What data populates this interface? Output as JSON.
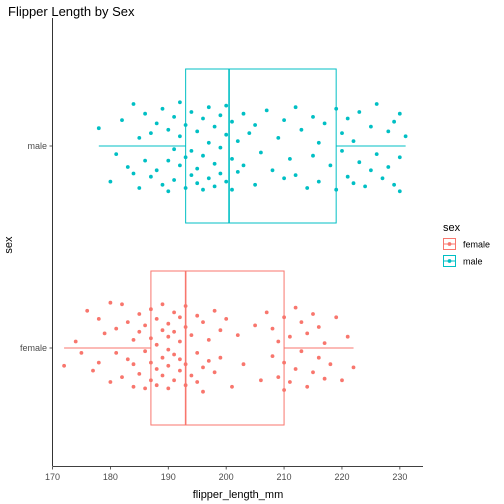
{
  "chart_data": {
    "type": "box+jitter",
    "title": "Flipper Length by Sex",
    "xlabel": "flipper_length_mm",
    "ylabel": "sex",
    "xlim": [
      170,
      234
    ],
    "x_ticks": [
      170,
      180,
      190,
      200,
      210,
      220,
      230
    ],
    "categories": [
      "female",
      "male"
    ],
    "legend": {
      "title": "sex",
      "position": "right",
      "entries": [
        "female",
        "male"
      ]
    },
    "grid": false,
    "series": [
      {
        "name": "female",
        "color": "#F8766D",
        "box": {
          "lower_whisker": 172,
          "q1": 187,
          "median": 193,
          "q3": 210,
          "upper_whisker": 222
        },
        "points": [
          [
            172,
            0.11
          ],
          [
            174,
            -0.04
          ],
          [
            175,
            0.03
          ],
          [
            176,
            -0.23
          ],
          [
            177,
            0.14
          ],
          [
            178,
            -0.18
          ],
          [
            178,
            0.09
          ],
          [
            179,
            -0.09
          ],
          [
            180,
            0.21
          ],
          [
            180,
            -0.28
          ],
          [
            181,
            0.03
          ],
          [
            181,
            -0.12
          ],
          [
            182,
            0.18
          ],
          [
            182,
            -0.27
          ],
          [
            183,
            0.07
          ],
          [
            183,
            -0.16
          ],
          [
            184,
            0.24
          ],
          [
            184,
            -0.05
          ],
          [
            184,
            0.1
          ],
          [
            185,
            -0.21
          ],
          [
            185,
            0.16
          ],
          [
            185,
            -0.1
          ],
          [
            186,
            0.25
          ],
          [
            186,
            0.02
          ],
          [
            186,
            -0.14
          ],
          [
            187,
            0.2
          ],
          [
            187,
            -0.06
          ],
          [
            187,
            0.09
          ],
          [
            187,
            -0.24
          ],
          [
            188,
            0.13
          ],
          [
            188,
            -0.02
          ],
          [
            188,
            -0.18
          ],
          [
            188,
            0.23
          ],
          [
            189,
            0.06
          ],
          [
            189,
            -0.11
          ],
          [
            189,
            0.17
          ],
          [
            189,
            -0.27
          ],
          [
            190,
            0.25
          ],
          [
            190,
            0.01
          ],
          [
            190,
            -0.15
          ],
          [
            190,
            0.11
          ],
          [
            190,
            -0.07
          ],
          [
            191,
            0.2
          ],
          [
            191,
            -0.22
          ],
          [
            191,
            0.04
          ],
          [
            191,
            -0.1
          ],
          [
            192,
            0.14
          ],
          [
            192,
            -0.19
          ],
          [
            192,
            0.07
          ],
          [
            192,
            -0.04
          ],
          [
            193,
            0.23
          ],
          [
            193,
            -0.13
          ],
          [
            193,
            0.1
          ],
          [
            193,
            -0.26
          ],
          [
            194,
            0.17
          ],
          [
            194,
            -0.08
          ],
          [
            195,
            0.21
          ],
          [
            195,
            -0.2
          ],
          [
            195,
            0.03
          ],
          [
            196,
            0.12
          ],
          [
            196,
            -0.16
          ],
          [
            196,
            0.27
          ],
          [
            197,
            -0.05
          ],
          [
            197,
            0.08
          ],
          [
            198,
            -0.23
          ],
          [
            198,
            0.15
          ],
          [
            199,
            -0.11
          ],
          [
            199,
            0.06
          ],
          [
            200,
            -0.18
          ],
          [
            201,
            0.24
          ],
          [
            202,
            -0.08
          ],
          [
            203,
            0.1
          ],
          [
            205,
            -0.14
          ],
          [
            206,
            0.2
          ],
          [
            207,
            -0.22
          ],
          [
            208,
            0.05
          ],
          [
            208,
            -0.12
          ],
          [
            209,
            0.18
          ],
          [
            209,
            -0.04
          ],
          [
            210,
            0.26
          ],
          [
            210,
            -0.19
          ],
          [
            210,
            0.09
          ],
          [
            211,
            -0.07
          ],
          [
            211,
            0.21
          ],
          [
            212,
            -0.25
          ],
          [
            212,
            0.13
          ],
          [
            213,
            0.02
          ],
          [
            213,
            -0.16
          ],
          [
            214,
            0.24
          ],
          [
            214,
            -0.09
          ],
          [
            215,
            0.15
          ],
          [
            215,
            -0.21
          ],
          [
            216,
            0.06
          ],
          [
            216,
            -0.13
          ],
          [
            217,
            0.19
          ],
          [
            217,
            -0.03
          ],
          [
            218,
            0.1
          ],
          [
            219,
            -0.19
          ],
          [
            220,
            0.2
          ],
          [
            221,
            -0.07
          ],
          [
            222,
            0.12
          ]
        ]
      },
      {
        "name": "male",
        "color": "#00BFC4",
        "box": {
          "lower_whisker": 178,
          "q1": 193,
          "median": 200.5,
          "q3": 219,
          "upper_whisker": 231
        },
        "points": [
          [
            178,
            -0.11
          ],
          [
            180,
            0.22
          ],
          [
            181,
            0.05
          ],
          [
            182,
            -0.16
          ],
          [
            183,
            0.13
          ],
          [
            184,
            -0.26
          ],
          [
            184,
            0.17
          ],
          [
            185,
            -0.05
          ],
          [
            185,
            0.26
          ],
          [
            186,
            0.09
          ],
          [
            186,
            -0.2
          ],
          [
            187,
            0.19
          ],
          [
            187,
            -0.08
          ],
          [
            188,
            0.15
          ],
          [
            188,
            -0.14
          ],
          [
            189,
            0.24
          ],
          [
            189,
            -0.23
          ],
          [
            190,
            0.09
          ],
          [
            190,
            -0.1
          ],
          [
            190,
            0.28
          ],
          [
            191,
            0.02
          ],
          [
            191,
            -0.18
          ],
          [
            191,
            0.21
          ],
          [
            192,
            0.12
          ],
          [
            192,
            -0.06
          ],
          [
            192,
            -0.27
          ],
          [
            193,
            0.26
          ],
          [
            193,
            0.07
          ],
          [
            193,
            -0.13
          ],
          [
            194,
            0.18
          ],
          [
            194,
            -0.21
          ],
          [
            194,
            0.03
          ],
          [
            195,
            0.23
          ],
          [
            195,
            -0.09
          ],
          [
            195,
            0.14
          ],
          [
            196,
            -0.17
          ],
          [
            196,
            0.27
          ],
          [
            196,
            0.06
          ],
          [
            197,
            -0.02
          ],
          [
            197,
            0.2
          ],
          [
            197,
            -0.24
          ],
          [
            198,
            0.11
          ],
          [
            198,
            -0.12
          ],
          [
            198,
            0.25
          ],
          [
            199,
            0.01
          ],
          [
            199,
            -0.19
          ],
          [
            199,
            0.17
          ],
          [
            200,
            -0.07
          ],
          [
            200,
            0.22
          ],
          [
            200,
            -0.25
          ],
          [
            201,
            0.08
          ],
          [
            201,
            -0.15
          ],
          [
            201,
            0.27
          ],
          [
            202,
            -0.03
          ],
          [
            202,
            0.16
          ],
          [
            203,
            -0.2
          ],
          [
            203,
            0.12
          ],
          [
            204,
            -0.08
          ],
          [
            205,
            0.24
          ],
          [
            205,
            -0.13
          ],
          [
            206,
            0.04
          ],
          [
            207,
            -0.22
          ],
          [
            208,
            0.15
          ],
          [
            209,
            -0.05
          ],
          [
            210,
            0.2
          ],
          [
            210,
            -0.16
          ],
          [
            211,
            0.08
          ],
          [
            212,
            -0.24
          ],
          [
            212,
            0.18
          ],
          [
            213,
            -0.1
          ],
          [
            214,
            0.26
          ],
          [
            215,
            -0.18
          ],
          [
            215,
            0.06
          ],
          [
            216,
            -0.02
          ],
          [
            216,
            0.22
          ],
          [
            217,
            -0.14
          ],
          [
            218,
            0.12
          ],
          [
            219,
            -0.23
          ],
          [
            219,
            0.27
          ],
          [
            220,
            0.03
          ],
          [
            220,
            -0.08
          ],
          [
            221,
            0.19
          ],
          [
            221,
            -0.17
          ],
          [
            222,
            0.23
          ],
          [
            222,
            -0.03
          ],
          [
            223,
            0.1
          ],
          [
            223,
            -0.21
          ],
          [
            224,
            0.25
          ],
          [
            225,
            -0.12
          ],
          [
            225,
            0.15
          ],
          [
            226,
            0.05
          ],
          [
            226,
            -0.26
          ],
          [
            227,
            0.2
          ],
          [
            228,
            -0.09
          ],
          [
            228,
            0.13
          ],
          [
            229,
            0.24
          ],
          [
            229,
            -0.15
          ],
          [
            230,
            0.07
          ],
          [
            230,
            -0.2
          ],
          [
            230,
            0.28
          ],
          [
            231,
            -0.06
          ]
        ]
      }
    ]
  }
}
